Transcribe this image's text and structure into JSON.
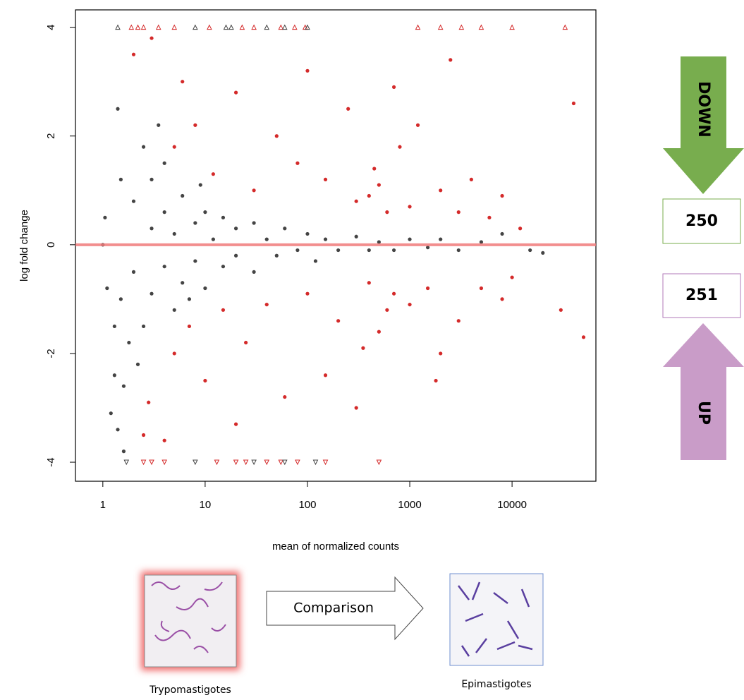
{
  "chart_data": {
    "type": "scatter",
    "xlabel": "mean of normalized counts",
    "ylabel": "log fold change",
    "xlog": true,
    "xlim": [
      0.54,
      66000
    ],
    "ylim": [
      -4.35,
      4.32
    ],
    "xticks": [
      1,
      10,
      100,
      1000,
      10000
    ],
    "yticks": [
      -4,
      -2,
      0,
      2,
      4
    ],
    "hline": {
      "value": 0,
      "color": "#f07a7a"
    },
    "series": [
      {
        "color": "#444444",
        "marker": "circle",
        "x": [
          1.5,
          1.5,
          1.4,
          1.6,
          2,
          2,
          2.5,
          2.5,
          3,
          3,
          3,
          4,
          4,
          4,
          5,
          5,
          6,
          6,
          8,
          8,
          10,
          10,
          12,
          15,
          15,
          20,
          20,
          30,
          30,
          40,
          50,
          60,
          80,
          100,
          120,
          150,
          200,
          300,
          400,
          500,
          700,
          1000,
          1500,
          2000,
          3000,
          5000,
          8000,
          15000,
          20000,
          1.2,
          1.4,
          1.6,
          1.3,
          1.0,
          1.1,
          1.05,
          2.2,
          1.8,
          3.5,
          1.3,
          7,
          9
        ],
        "y": [
          1.2,
          -1.0,
          2.5,
          -2.6,
          0.8,
          -0.5,
          1.8,
          -1.5,
          0.3,
          -0.9,
          1.2,
          0.6,
          -0.4,
          1.5,
          -1.2,
          0.2,
          0.9,
          -0.7,
          0.4,
          -0.3,
          0.6,
          -0.8,
          0.1,
          -0.4,
          0.5,
          0.3,
          -0.2,
          0.4,
          -0.5,
          0.1,
          -0.2,
          0.3,
          -0.1,
          0.2,
          -0.3,
          0.1,
          -0.1,
          0.15,
          -0.1,
          0.05,
          -0.1,
          0.1,
          -0.05,
          0.1,
          -0.1,
          0.05,
          0.2,
          -0.1,
          -0.15,
          -3.1,
          -3.4,
          -3.8,
          -2.4,
          0.0,
          -0.8,
          0.5,
          -2.2,
          -1.8,
          2.2,
          -1.5,
          -1.0,
          1.1
        ]
      },
      {
        "color": "#d42a2a",
        "marker": "circle",
        "x": [
          5,
          5,
          6,
          7,
          8,
          10,
          12,
          15,
          20,
          25,
          30,
          40,
          50,
          60,
          80,
          100,
          100,
          150,
          200,
          250,
          300,
          300,
          400,
          400,
          500,
          500,
          600,
          700,
          800,
          1000,
          1000,
          1200,
          1500,
          2000,
          2000,
          3000,
          3000,
          4000,
          5000,
          6000,
          8000,
          10000,
          40000,
          30000,
          50000,
          2500,
          1800,
          3.0,
          2.5,
          2.8,
          2,
          4,
          150,
          350,
          700,
          20,
          8000,
          12000,
          450,
          600
        ],
        "y": [
          1.8,
          -2.0,
          3.0,
          -1.5,
          2.2,
          -2.5,
          1.3,
          -1.2,
          2.8,
          -1.8,
          1.0,
          -1.1,
          2.0,
          -2.8,
          1.5,
          -0.9,
          3.2,
          1.2,
          -1.4,
          2.5,
          0.8,
          -3.0,
          0.9,
          -0.7,
          1.1,
          -1.6,
          0.6,
          -0.9,
          1.8,
          0.7,
          -1.1,
          2.2,
          -0.8,
          1.0,
          -2.0,
          0.6,
          -1.4,
          1.2,
          -0.8,
          0.5,
          0.9,
          -0.6,
          2.6,
          -1.2,
          -1.7,
          3.4,
          -2.5,
          3.8,
          -3.5,
          -2.9,
          3.5,
          -3.6,
          -2.4,
          -1.9,
          2.9,
          -3.3,
          -1.0,
          0.3,
          1.4,
          -1.2
        ]
      },
      {
        "color": "#d42a2a",
        "marker": "triangle-up",
        "x": [
          1.9,
          2.2,
          2.5,
          3.5,
          5,
          11,
          23,
          30,
          55,
          75,
          95,
          1200,
          2000,
          3200,
          5000,
          10000,
          33000
        ],
        "y": [
          4,
          4,
          4,
          4,
          4,
          4,
          4,
          4,
          4,
          4,
          4,
          4,
          4,
          4,
          4,
          4,
          4
        ]
      },
      {
        "color": "#444444",
        "marker": "triangle-up",
        "x": [
          1.4,
          8,
          16,
          18,
          40,
          60,
          100
        ],
        "y": [
          4,
          4,
          4,
          4,
          4,
          4,
          4
        ]
      },
      {
        "color": "#d42a2a",
        "marker": "triangle-down",
        "x": [
          2.5,
          3,
          4,
          13,
          20,
          25,
          40,
          55,
          80,
          150,
          500
        ],
        "y": [
          -4,
          -4,
          -4,
          -4,
          -4,
          -4,
          -4,
          -4,
          -4,
          -4,
          -4
        ]
      },
      {
        "color": "#444444",
        "marker": "triangle-down",
        "x": [
          1.7,
          8,
          30,
          60,
          120
        ],
        "y": [
          -4,
          -4,
          -4,
          -4,
          -4
        ]
      }
    ]
  },
  "annotations": {
    "down_label": "DOWN",
    "down_count": 250,
    "up_count": 251,
    "up_label": "UP",
    "comparison": "Comparison",
    "left_sample": "Trypomastigotes",
    "right_sample": "Epimastigotes"
  }
}
